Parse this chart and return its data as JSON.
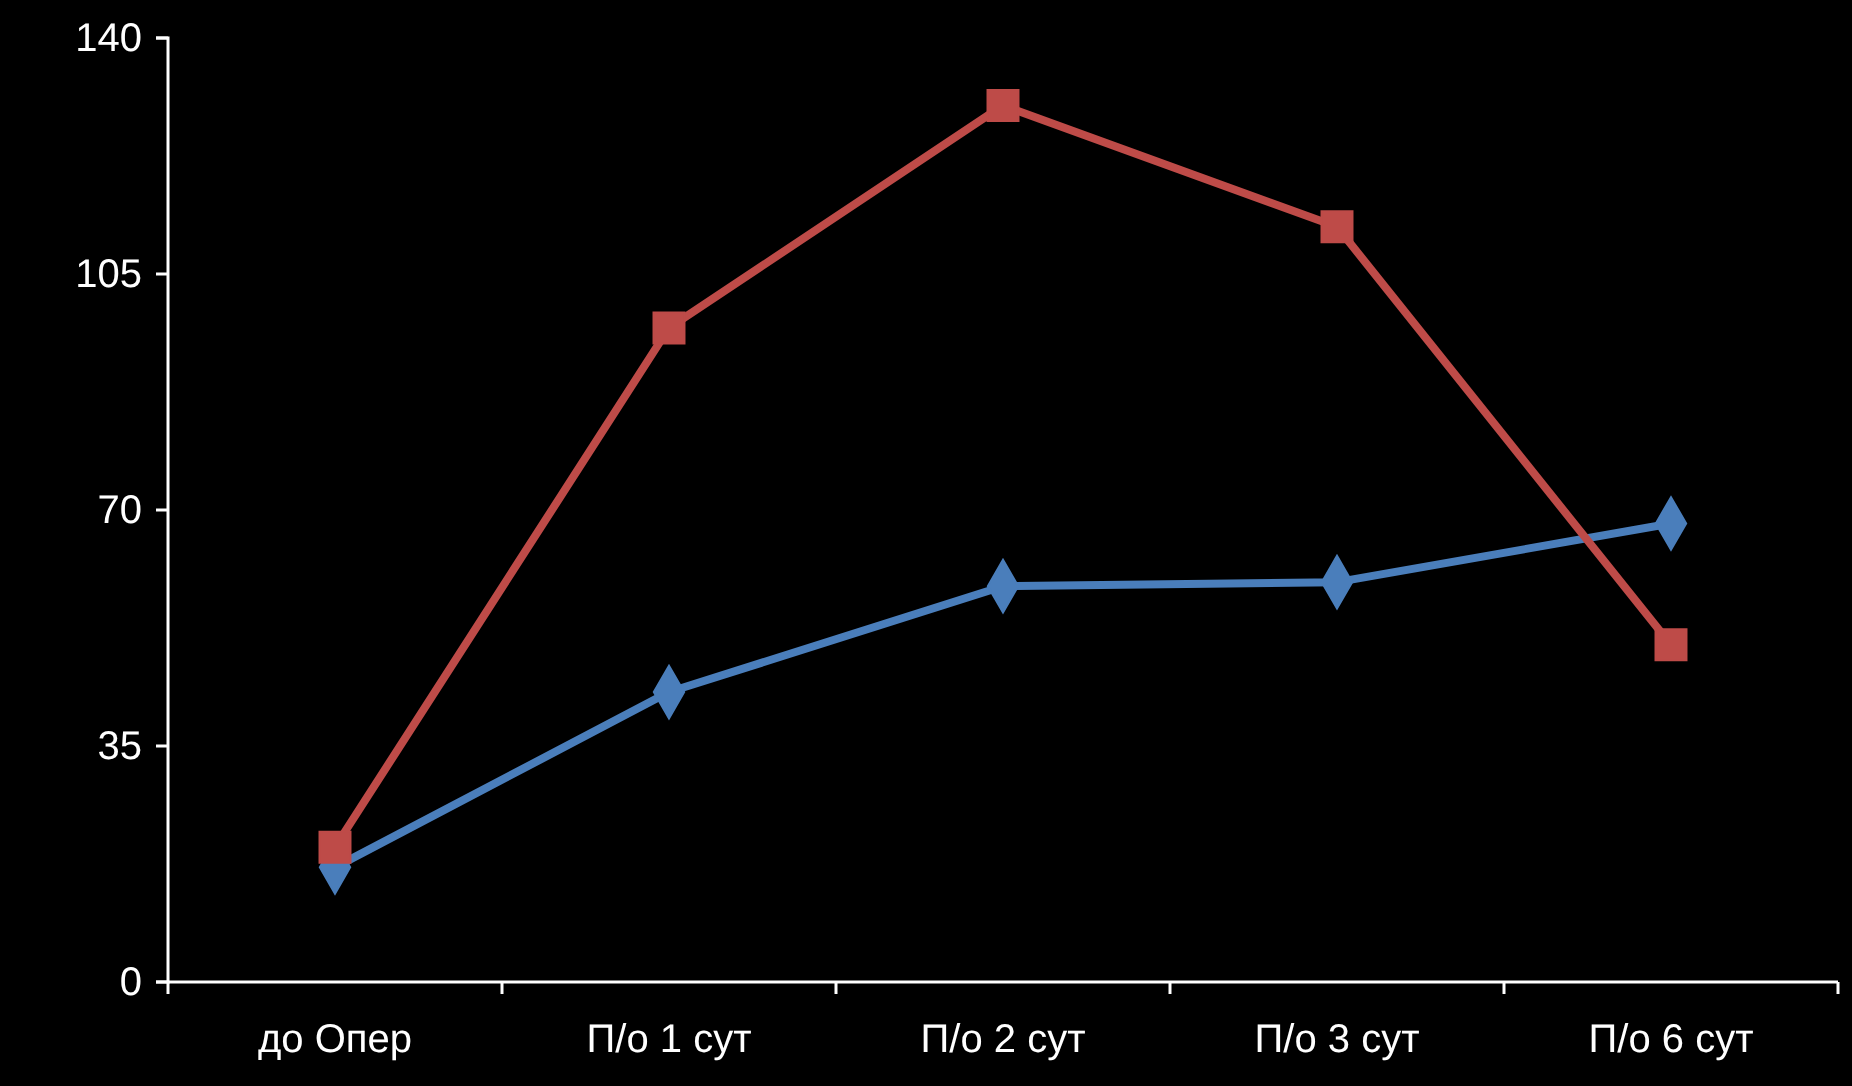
{
  "chart_data": {
    "type": "line",
    "categories": [
      "до Опер",
      "П/о 1 сут",
      "П/о 2 сут",
      "П/о 3 сут",
      "П/о 6 сут"
    ],
    "series": [
      {
        "color": "#4a7ebb",
        "marker": "diamond",
        "values": [
          17,
          43,
          58.7,
          59.3,
          68
        ]
      },
      {
        "color": "#be4b48",
        "marker": "square",
        "values": [
          20,
          97,
          130,
          112,
          50
        ]
      }
    ],
    "ylim": [
      0,
      140
    ],
    "yticks": [
      0,
      35,
      70,
      105,
      140
    ],
    "grid": false
  }
}
